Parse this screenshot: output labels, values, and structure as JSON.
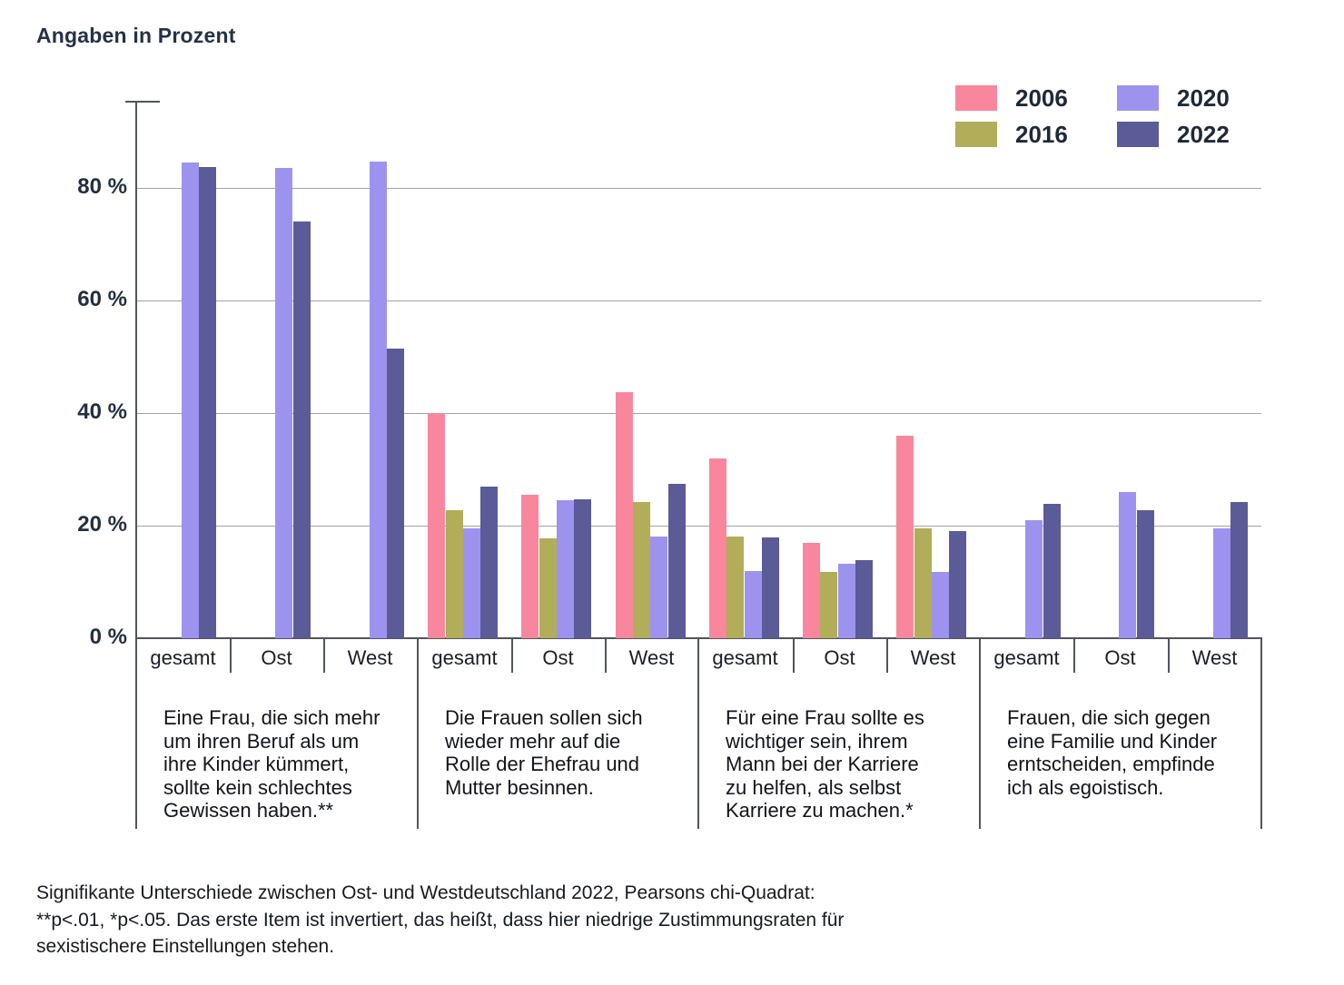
{
  "title": "Angaben in Prozent",
  "footnote": "Signifikante Unterschiede zwischen Ost- und Westdeutschland 2022, Pearsons chi-Quadrat:\n**p<.01, *p<.05. Das erste Item ist invertiert, das heißt, dass hier niedrige Zustimmungsraten für\nsexistischere Einstellungen stehen.",
  "chart_data": {
    "type": "bar",
    "title": "Angaben in Prozent",
    "unit": "Prozent",
    "ylim": [
      0,
      95
    ],
    "yticks": [
      0,
      20,
      40,
      60,
      80
    ],
    "ytick_labels": [
      "0 %",
      "20 %",
      "40 %",
      "60 %",
      "80 %"
    ],
    "grid": true,
    "legend_position": "top-right",
    "series_names": [
      "2006",
      "2016",
      "2020",
      "2022"
    ],
    "series_colors": {
      "2006": "#F8879E",
      "2016": "#B1AD59",
      "2020": "#9D93EF",
      "2022": "#5B5B97"
    },
    "groups": [
      {
        "statement": "Eine Frau, die sich mehr\num ihren Beruf als um\nihre Kinder kümmert,\nsollte kein schlechtes\nGewissen haben.**",
        "categories": [
          "gesamt",
          "Ost",
          "West"
        ],
        "series": [
          {
            "name": "2006",
            "values": [
              null,
              null,
              null
            ]
          },
          {
            "name": "2016",
            "values": [
              null,
              null,
              null
            ]
          },
          {
            "name": "2020",
            "values": [
              84.5,
              83.5,
              84.6
            ]
          },
          {
            "name": "2022",
            "values": [
              83.7,
              74.0,
              51.5
            ]
          }
        ]
      },
      {
        "statement": "Die Frauen sollen sich\nwieder mehr auf die\nRolle der Ehefrau und\nMutter besinnen.",
        "categories": [
          "gesamt",
          "Ost",
          "West"
        ],
        "series": [
          {
            "name": "2006",
            "values": [
              40.0,
              25.5,
              43.7
            ]
          },
          {
            "name": "2016",
            "values": [
              22.8,
              17.8,
              24.2
            ]
          },
          {
            "name": "2020",
            "values": [
              19.5,
              24.5,
              18.0
            ]
          },
          {
            "name": "2022",
            "values": [
              27.0,
              24.7,
              27.5
            ]
          }
        ]
      },
      {
        "statement": "Für eine Frau sollte es\nwichtiger sein, ihrem\nMann bei der Karriere\nzu helfen, als selbst\nKarriere zu machen.*",
        "categories": [
          "gesamt",
          "Ost",
          "West"
        ],
        "series": [
          {
            "name": "2006",
            "values": [
              32.0,
              17.0,
              36.0
            ]
          },
          {
            "name": "2016",
            "values": [
              18.0,
              11.8,
              19.5
            ]
          },
          {
            "name": "2020",
            "values": [
              12.0,
              13.3,
              11.7
            ]
          },
          {
            "name": "2022",
            "values": [
              17.9,
              13.8,
              19.0
            ]
          }
        ]
      },
      {
        "statement": "Frauen, die sich gegen\neine Familie und Kinder\nerntscheiden, empfinde\nich als egoistisch.",
        "categories": [
          "gesamt",
          "Ost",
          "West"
        ],
        "series": [
          {
            "name": "2006",
            "values": [
              null,
              null,
              null
            ]
          },
          {
            "name": "2016",
            "values": [
              null,
              null,
              null
            ]
          },
          {
            "name": "2020",
            "values": [
              21.0,
              26.0,
              19.5
            ]
          },
          {
            "name": "2022",
            "values": [
              23.8,
              22.8,
              24.2
            ]
          }
        ]
      }
    ]
  }
}
